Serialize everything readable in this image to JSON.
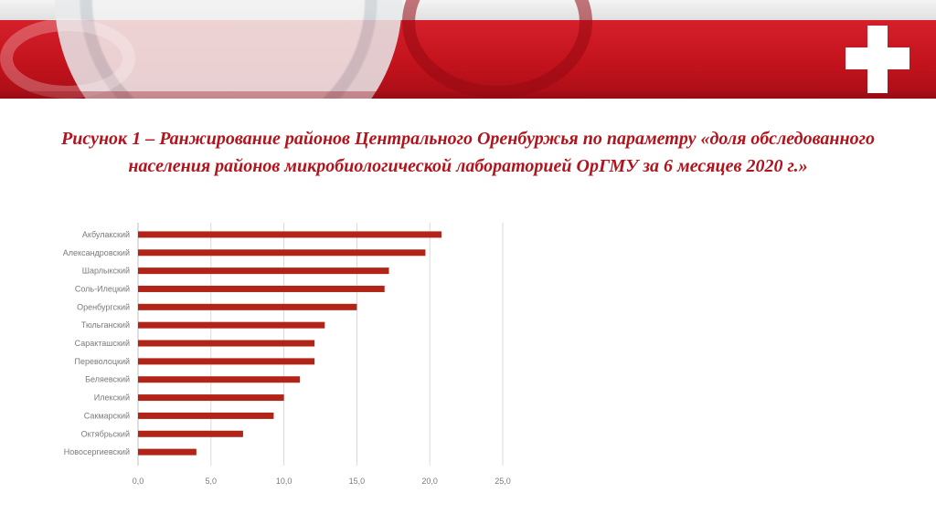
{
  "title": "Рисунок 1 – Ранжирование районов Центрального Оренбуржья по параметру «доля обследованного населения районов микробиологической лабораторией ОрГМУ за 6 месяцев 2020 г.»",
  "colors": {
    "bar": "#b22418",
    "banner": "#c8161f",
    "grid": "#d9d9d9"
  },
  "chart_data": {
    "type": "bar",
    "orientation": "horizontal",
    "categories": [
      "Акбулакский",
      "Александровский",
      "Шарлыкский",
      "Соль-Илецкий",
      "Оренбургский",
      "Тюльганский",
      "Саракташский",
      "Переволоцкий",
      "Беляевский",
      "Илекский",
      "Сакмарский",
      "Октябрьский",
      "Новосергиевский"
    ],
    "values": [
      20.8,
      19.7,
      17.2,
      16.9,
      15.0,
      12.8,
      12.1,
      12.1,
      11.1,
      10.0,
      9.3,
      7.2,
      4.0
    ],
    "xlim": [
      0,
      25
    ],
    "xticks": [
      "0,0",
      "5,0",
      "10,0",
      "15,0",
      "20,0",
      "25,0"
    ],
    "grid": true,
    "title": "",
    "xlabel": "",
    "ylabel": ""
  }
}
